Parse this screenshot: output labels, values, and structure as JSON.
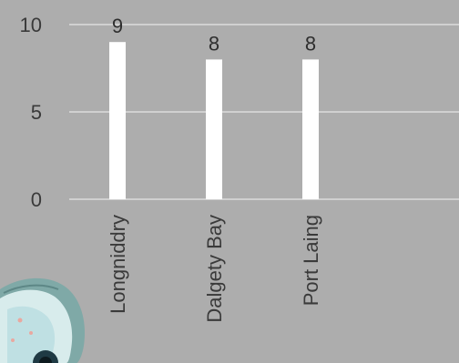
{
  "chart_data": {
    "type": "bar",
    "categories": [
      "Longniddry",
      "Dalgety Bay",
      "Port Laing"
    ],
    "values": [
      9,
      8,
      8
    ],
    "yticks": [
      0,
      5,
      10
    ],
    "ylim": [
      0,
      10
    ],
    "grid": true,
    "colors": {
      "bar": "#ffffff",
      "background": "#adadad",
      "grid": "#e6e6e6"
    }
  }
}
